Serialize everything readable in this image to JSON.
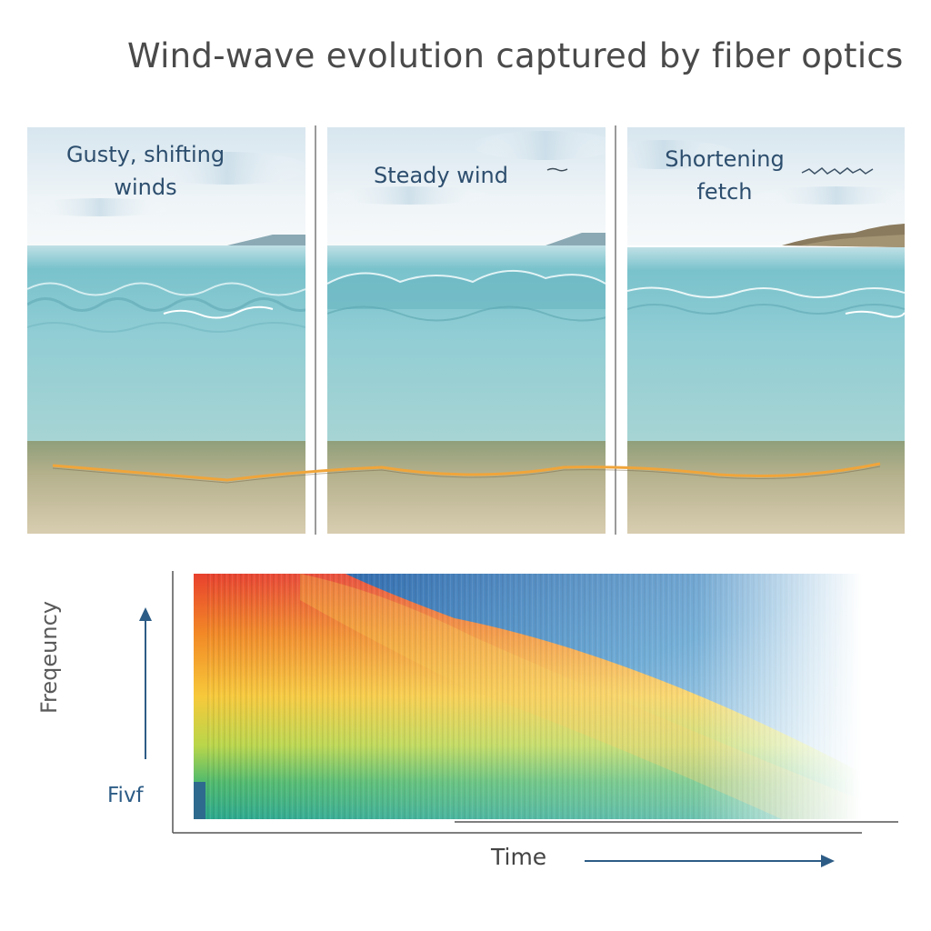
{
  "title": "Wind-wave evolution captured by fiber optics",
  "panels": [
    {
      "label_line1": "Gusty, shifting",
      "label_line2": "winds"
    },
    {
      "label_line1": "Steady wind",
      "label_line2": ""
    },
    {
      "label_line1": "Shortening",
      "label_line2": "fetch"
    }
  ],
  "spectrogram": {
    "y_label": "Freqeuncy",
    "y_tick": "Fivf",
    "x_label": "Time"
  },
  "colors": {
    "sky": "#e8f1f6",
    "water": "#8ecbd3",
    "sand": "#b4ae8c",
    "fiber": "#f0a53a",
    "axis": "#2d5c86"
  }
}
